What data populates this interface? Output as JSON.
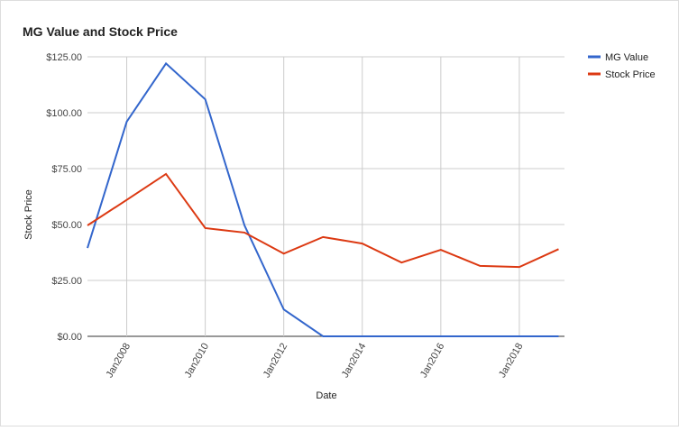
{
  "chart_data": {
    "type": "line",
    "title": "MG Value and Stock Price",
    "x_label": "Date",
    "y_label": "Stock Price",
    "x": [
      2007,
      2008,
      2009,
      2010,
      2011,
      2012,
      2013,
      2014,
      2015,
      2016,
      2017,
      2018,
      2019
    ],
    "series": [
      {
        "name": "MG Value",
        "color": "#3366cc",
        "values": [
          39.5,
          96,
          122,
          106,
          49.6,
          12,
          0,
          0,
          0,
          0,
          0,
          0,
          0
        ]
      },
      {
        "name": "Stock Price",
        "color": "#dc3912",
        "values": [
          49.6,
          61,
          72.6,
          48.4,
          46.4,
          37,
          44.4,
          41.5,
          33,
          38.7,
          31.5,
          31,
          39
        ]
      }
    ],
    "xlim": [
      2007,
      2019.15
    ],
    "xticks": [
      {
        "value": 2008,
        "label": "Jan2008"
      },
      {
        "value": 2010,
        "label": "Jan2010"
      },
      {
        "value": 2012,
        "label": "Jan2012"
      },
      {
        "value": 2014,
        "label": "Jan2014"
      },
      {
        "value": 2016,
        "label": "Jan2016"
      },
      {
        "value": 2018,
        "label": "Jan2018"
      }
    ],
    "ylim": [
      0,
      125
    ],
    "yticks": [
      {
        "value": 0,
        "label": "$0.00"
      },
      {
        "value": 25,
        "label": "$25.00"
      },
      {
        "value": 50,
        "label": "$50.00"
      },
      {
        "value": 75,
        "label": "$75.00"
      },
      {
        "value": 100,
        "label": "$100.00"
      },
      {
        "value": 125,
        "label": "$125.00"
      }
    ],
    "grid": true,
    "legend": "right"
  }
}
